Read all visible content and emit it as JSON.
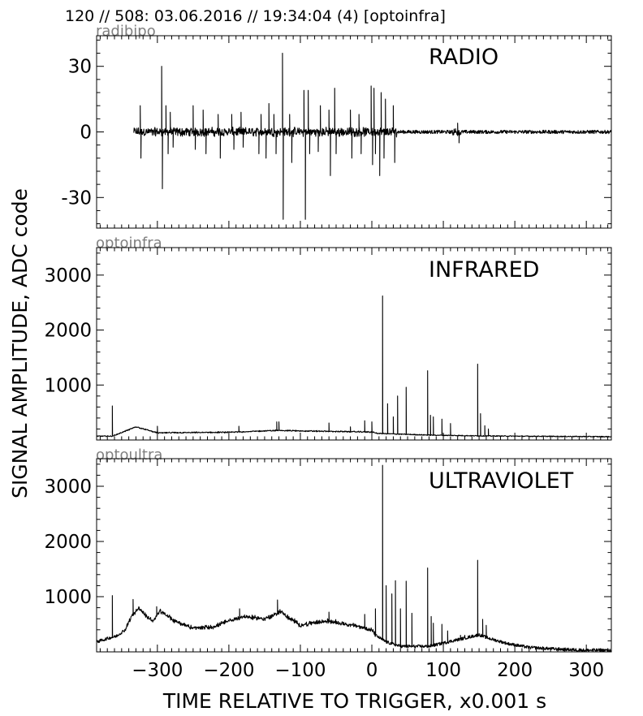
{
  "header": "120 // 508:   03.06.2016 // 19:34:04 (4)  [optoinfra]",
  "ylabel": "SIGNAL AMPLITUDE,  ADC code",
  "xlabel": "TIME RELATIVE TO TRIGGER,   x0.001 s",
  "chart_data": [
    {
      "type": "line",
      "channel": "radibipo",
      "title": "RADIO",
      "xlim": [
        -385,
        335
      ],
      "ylim": [
        -44,
        44
      ],
      "yticks": [
        -30,
        0,
        30
      ],
      "xticks": [
        -300,
        -200,
        -100,
        0,
        100,
        200,
        300
      ],
      "noise": 0.8,
      "x_start": -333,
      "baseline": [
        [
          -333,
          0
        ],
        [
          335,
          0
        ]
      ],
      "spikes": [
        [
          -324,
          12
        ],
        [
          -323,
          -12
        ],
        [
          -294,
          30
        ],
        [
          -293,
          -26
        ],
        [
          -288,
          12
        ],
        [
          -285,
          -10
        ],
        [
          -282,
          9
        ],
        [
          -278,
          -7
        ],
        [
          -250,
          12
        ],
        [
          -247,
          -8
        ],
        [
          -236,
          10
        ],
        [
          -232,
          -10
        ],
        [
          -215,
          8
        ],
        [
          -212,
          -12
        ],
        [
          -196,
          8
        ],
        [
          -193,
          -8
        ],
        [
          -183,
          9
        ],
        [
          -180,
          -7
        ],
        [
          -158,
          -10
        ],
        [
          -155,
          8
        ],
        [
          -148,
          -12
        ],
        [
          -144,
          13
        ],
        [
          -137,
          8
        ],
        [
          -134,
          -10
        ],
        [
          -125,
          36
        ],
        [
          -124,
          -40
        ],
        [
          -115,
          8
        ],
        [
          -112,
          -14
        ],
        [
          -95,
          19
        ],
        [
          -93,
          -40
        ],
        [
          -89,
          19
        ],
        [
          -87,
          -10
        ],
        [
          -75,
          -9
        ],
        [
          -72,
          12
        ],
        [
          -60,
          10
        ],
        [
          -58,
          -20
        ],
        [
          -52,
          20
        ],
        [
          -50,
          -10
        ],
        [
          -30,
          10
        ],
        [
          -28,
          -12
        ],
        [
          -18,
          8
        ],
        [
          -15,
          -10
        ],
        [
          -1,
          21
        ],
        [
          1,
          -15
        ],
        [
          3,
          20
        ],
        [
          5,
          -10
        ],
        [
          11,
          -20
        ],
        [
          13,
          18
        ],
        [
          17,
          -12
        ],
        [
          19,
          15
        ],
        [
          30,
          12
        ],
        [
          32,
          -14
        ],
        [
          120,
          4
        ],
        [
          122,
          -5
        ]
      ]
    },
    {
      "type": "line",
      "channel": "optoinfra",
      "title": "INFRARED",
      "xlim": [
        -385,
        335
      ],
      "ylim": [
        0,
        3500
      ],
      "yticks": [
        1000,
        2000,
        3000
      ],
      "xticks": [
        -300,
        -200,
        -100,
        0,
        100,
        200,
        300
      ],
      "noise": 8,
      "x_start": -385,
      "baseline": [
        [
          -385,
          70
        ],
        [
          -363,
          70
        ],
        [
          -345,
          160
        ],
        [
          -330,
          240
        ],
        [
          -300,
          130
        ],
        [
          -200,
          140
        ],
        [
          -130,
          175
        ],
        [
          -100,
          165
        ],
        [
          0,
          145
        ],
        [
          8,
          120
        ],
        [
          30,
          110
        ],
        [
          80,
          90
        ],
        [
          150,
          75
        ],
        [
          200,
          70
        ],
        [
          335,
          60
        ]
      ],
      "spikes": [
        [
          -363,
          620
        ],
        [
          -300,
          250
        ],
        [
          -186,
          250
        ],
        [
          -133,
          330
        ],
        [
          -130,
          330
        ],
        [
          -60,
          310
        ],
        [
          -30,
          240
        ],
        [
          -10,
          350
        ],
        [
          0,
          330
        ],
        [
          15,
          2620
        ],
        [
          22,
          660
        ],
        [
          30,
          420
        ],
        [
          36,
          800
        ],
        [
          48,
          960
        ],
        [
          78,
          1260
        ],
        [
          82,
          450
        ],
        [
          86,
          420
        ],
        [
          98,
          380
        ],
        [
          110,
          300
        ],
        [
          148,
          1380
        ],
        [
          152,
          480
        ],
        [
          158,
          260
        ],
        [
          163,
          200
        ]
      ]
    },
    {
      "type": "line",
      "channel": "optoultra",
      "title": "ULTRAVIOLET",
      "xlim": [
        -385,
        335
      ],
      "ylim": [
        0,
        3500
      ],
      "yticks": [
        1000,
        2000,
        3000
      ],
      "xticks": [
        -300,
        -200,
        -100,
        0,
        100,
        200,
        300
      ],
      "noise": 28,
      "x_start": -385,
      "baseline": [
        [
          -385,
          180
        ],
        [
          -368,
          250
        ],
        [
          -358,
          280
        ],
        [
          -345,
          400
        ],
        [
          -336,
          650
        ],
        [
          -326,
          800
        ],
        [
          -316,
          650
        ],
        [
          -306,
          560
        ],
        [
          -296,
          740
        ],
        [
          -276,
          560
        ],
        [
          -250,
          430
        ],
        [
          -222,
          450
        ],
        [
          -200,
          560
        ],
        [
          -180,
          640
        ],
        [
          -150,
          600
        ],
        [
          -137,
          660
        ],
        [
          -128,
          740
        ],
        [
          -118,
          630
        ],
        [
          -100,
          480
        ],
        [
          -85,
          520
        ],
        [
          -60,
          560
        ],
        [
          -30,
          490
        ],
        [
          -5,
          420
        ],
        [
          0,
          400
        ],
        [
          5,
          300
        ],
        [
          20,
          180
        ],
        [
          40,
          100
        ],
        [
          80,
          100
        ],
        [
          150,
          310
        ],
        [
          165,
          240
        ],
        [
          190,
          150
        ],
        [
          220,
          80
        ],
        [
          260,
          50
        ],
        [
          300,
          30
        ],
        [
          335,
          30
        ]
      ],
      "spikes": [
        [
          -363,
          1020
        ],
        [
          -334,
          950
        ],
        [
          -301,
          820
        ],
        [
          -185,
          780
        ],
        [
          -132,
          940
        ],
        [
          -108,
          600
        ],
        [
          -60,
          720
        ],
        [
          -10,
          680
        ],
        [
          5,
          780
        ],
        [
          15,
          3380
        ],
        [
          20,
          1200
        ],
        [
          28,
          1050
        ],
        [
          33,
          1290
        ],
        [
          40,
          780
        ],
        [
          48,
          1280
        ],
        [
          56,
          700
        ],
        [
          78,
          1520
        ],
        [
          83,
          640
        ],
        [
          86,
          520
        ],
        [
          98,
          500
        ],
        [
          106,
          380
        ],
        [
          124,
          300
        ],
        [
          130,
          300
        ],
        [
          148,
          1660
        ],
        [
          155,
          590
        ],
        [
          160,
          480
        ]
      ]
    }
  ]
}
